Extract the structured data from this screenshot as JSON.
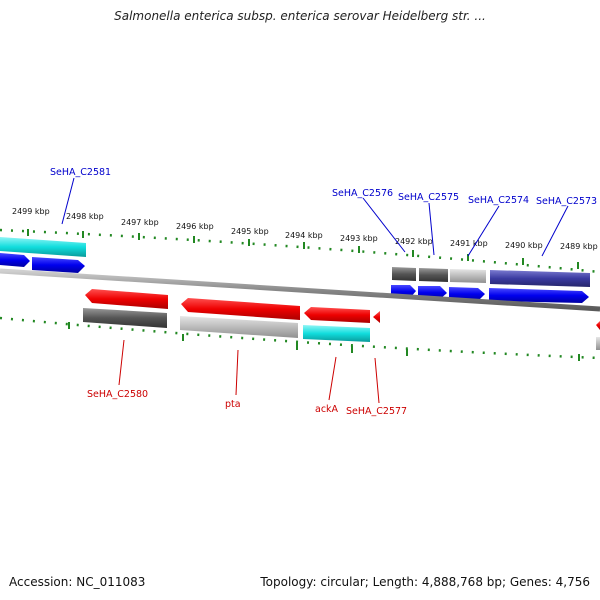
{
  "title": "Salmonella enterica subsp. enterica serovar Heidelberg str. ...",
  "footer": {
    "accession": "Accession: NC_011083",
    "stats": "Topology: circular; Length: 4,888,768 bp; Genes: 4,756"
  },
  "ruler_ticks": [
    "2499 kbp",
    "2498 kbp",
    "2497 kbp",
    "2496 kbp",
    "2495 kbp",
    "2494 kbp",
    "2493 kbp",
    "2492 kbp",
    "2491 kbp",
    "2490 kbp",
    "2489 kbp"
  ],
  "gene_labels": {
    "top": [
      "SeHA_C2581",
      "SeHA_C2576",
      "SeHA_C2575",
      "SeHA_C2574",
      "SeHA_C2573"
    ],
    "bottom": [
      "SeHA_C2580",
      "pta",
      "ackA",
      "SeHA_C2577"
    ]
  },
  "colors": {
    "top_label": "#0000cc",
    "bottom_label": "#cc0000",
    "cds_forward": "#0000ee",
    "cds_reverse": "#ee0000",
    "gc_dark": "#555555",
    "gc_light": "#bbbbbb",
    "gc_cyan": "#11dddd",
    "gc_navy": "#3a3aa0",
    "tick_green": "#228822",
    "backbone": "#888888"
  }
}
